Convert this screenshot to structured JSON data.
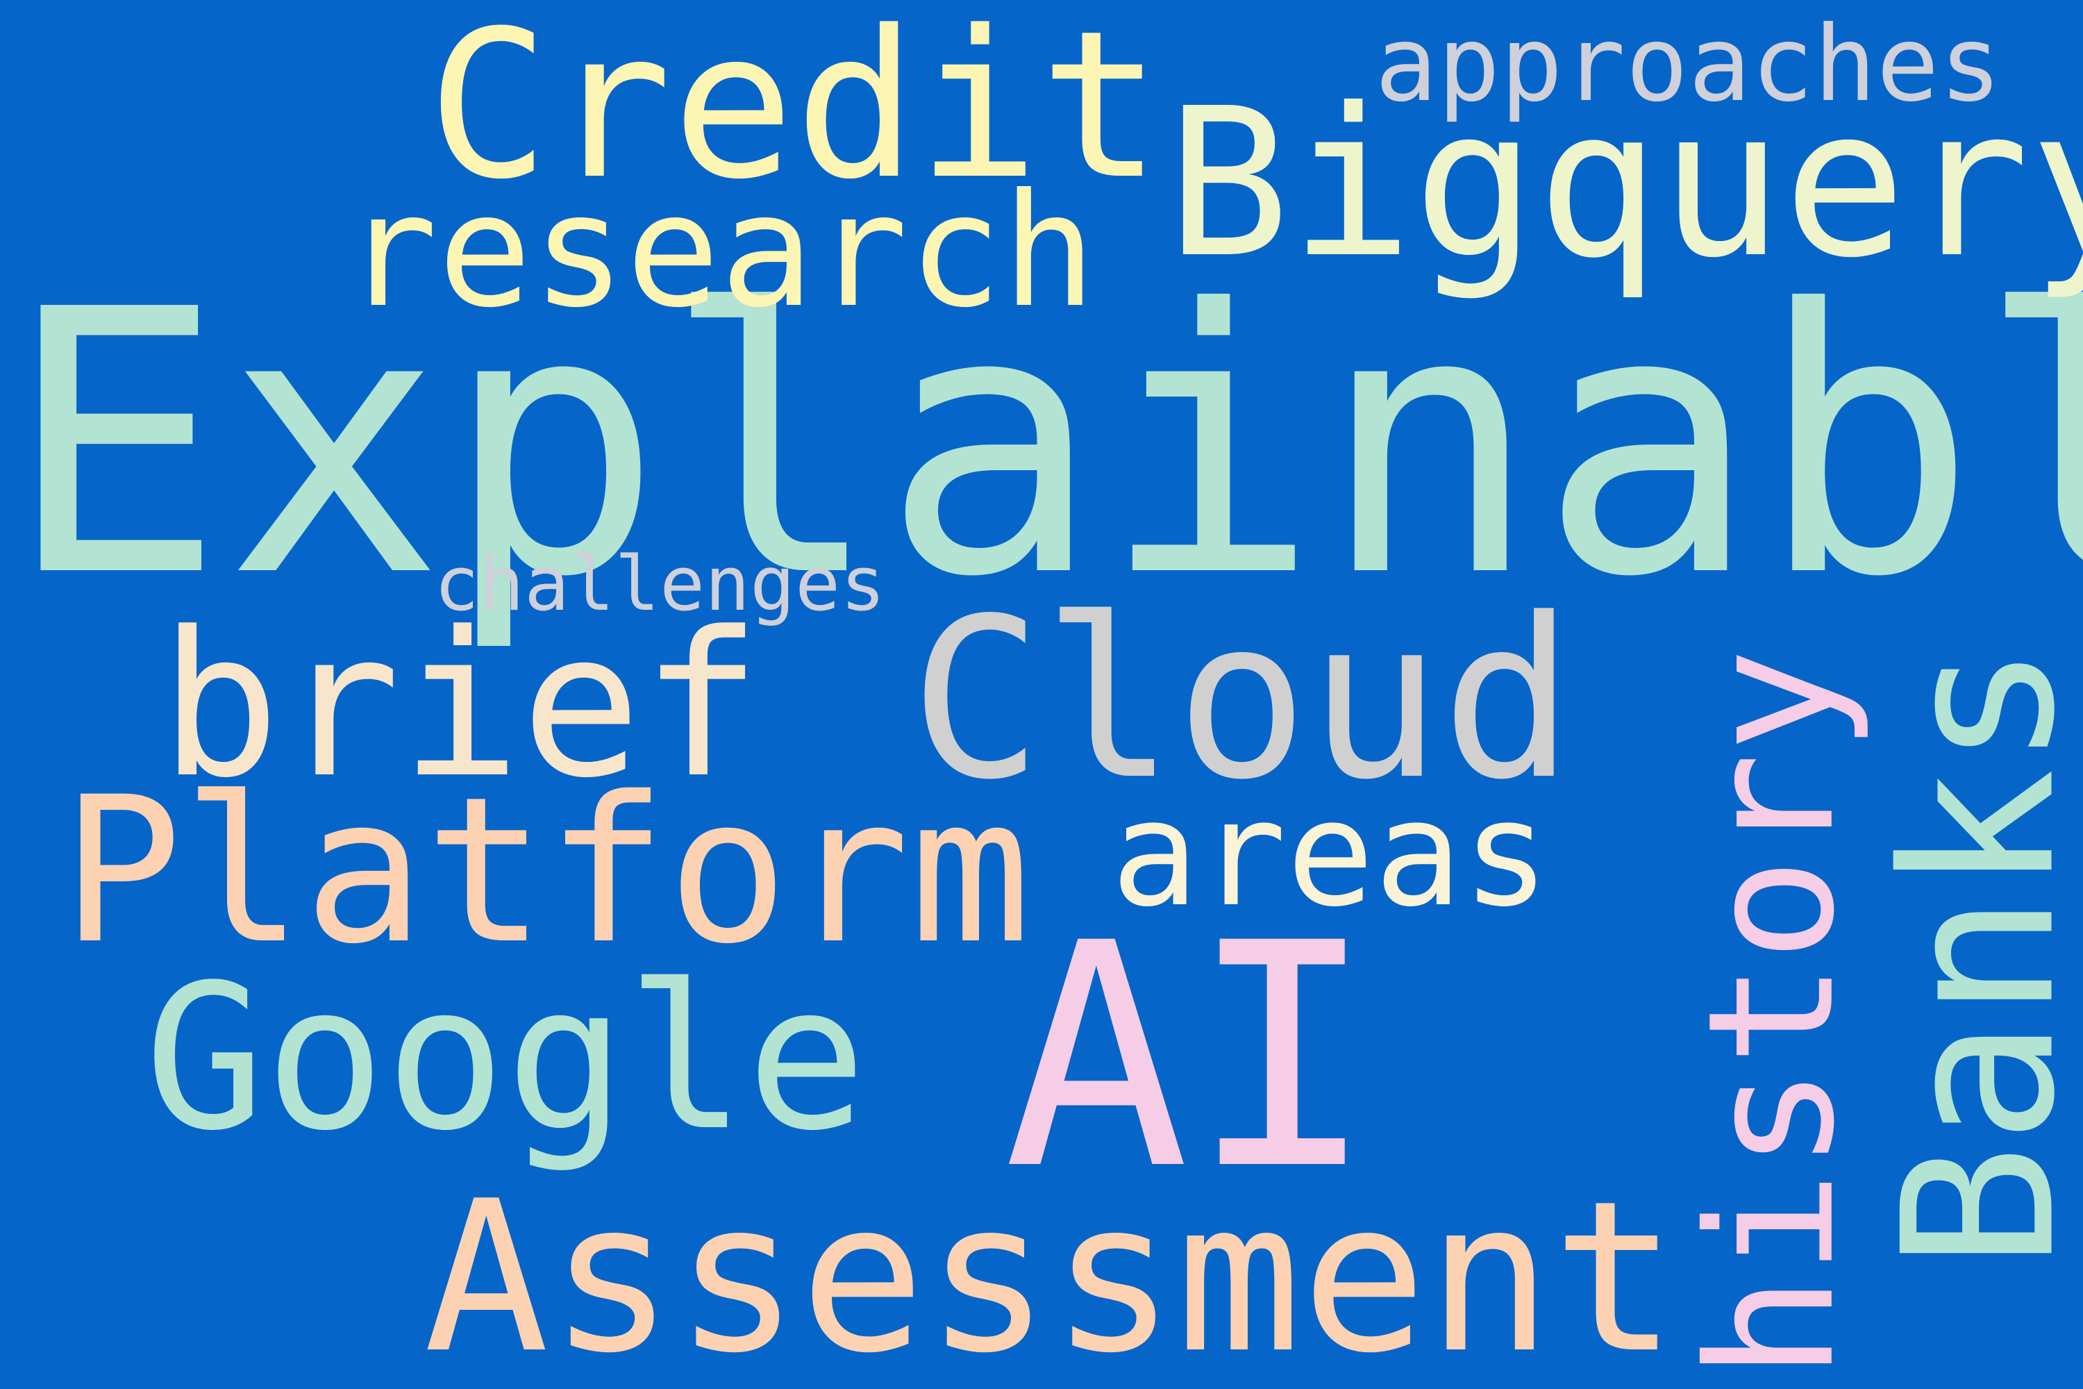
{
  "background_color": "#0565c9",
  "words": {
    "explainable": {
      "text": "Explainable",
      "color": "#b3e3d2"
    },
    "credit": {
      "text": "Credit",
      "color": "#fcf5b3"
    },
    "bigquery": {
      "text": "Bigquery",
      "color": "#eef5cd"
    },
    "approaches": {
      "text": "approaches",
      "color": "#cfd0da"
    },
    "research": {
      "text": "research",
      "color": "#fcf5b3"
    },
    "challenges": {
      "text": "challenges",
      "color": "#cfd0da"
    },
    "brief": {
      "text": "brief",
      "color": "#f7e6cc"
    },
    "cloud": {
      "text": "Cloud",
      "color": "#d0d0d0"
    },
    "platform": {
      "text": "Platform",
      "color": "#fcd2b3"
    },
    "areas": {
      "text": "areas",
      "color": "#fbf3d7"
    },
    "google": {
      "text": "Google",
      "color": "#b3e3d2"
    },
    "ai": {
      "text": "AI",
      "color": "#f6cde6"
    },
    "assessment": {
      "text": "Assessment",
      "color": "#fcd2b3"
    },
    "history": {
      "text": "history",
      "color": "#f6cde6"
    },
    "banks": {
      "text": "Banks",
      "color": "#b3e3d2"
    }
  }
}
